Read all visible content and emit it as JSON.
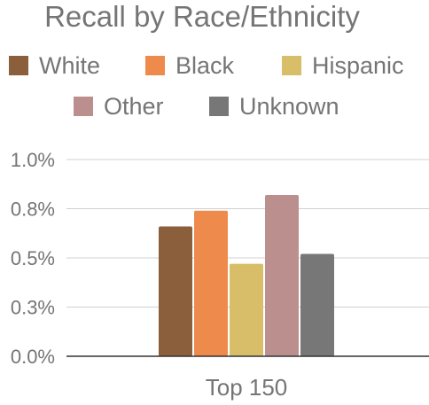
{
  "chart_data": {
    "type": "bar",
    "title": "Recall by Race/Ethnicity",
    "categories": [
      "Top 150"
    ],
    "series": [
      {
        "name": "White",
        "values": [
          0.66
        ],
        "color": "#8B5E3C"
      },
      {
        "name": "Black",
        "values": [
          0.74
        ],
        "color": "#EE8A4C"
      },
      {
        "name": "Hispanic",
        "values": [
          0.47
        ],
        "color": "#D8BE68"
      },
      {
        "name": "Other",
        "values": [
          0.82
        ],
        "color": "#BC8F8F"
      },
      {
        "name": "Unknown",
        "values": [
          0.52
        ],
        "color": "#777777"
      }
    ],
    "ylim": [
      0,
      1.0
    ],
    "yticks": [
      {
        "value": 0.0,
        "label": "0.0%"
      },
      {
        "value": 0.25,
        "label": "0.3%"
      },
      {
        "value": 0.5,
        "label": "0.5%"
      },
      {
        "value": 0.75,
        "label": "0.8%"
      },
      {
        "value": 1.0,
        "label": "1.0%"
      }
    ],
    "xlabel": "",
    "ylabel": "",
    "grid": true,
    "legend_position": "top"
  }
}
